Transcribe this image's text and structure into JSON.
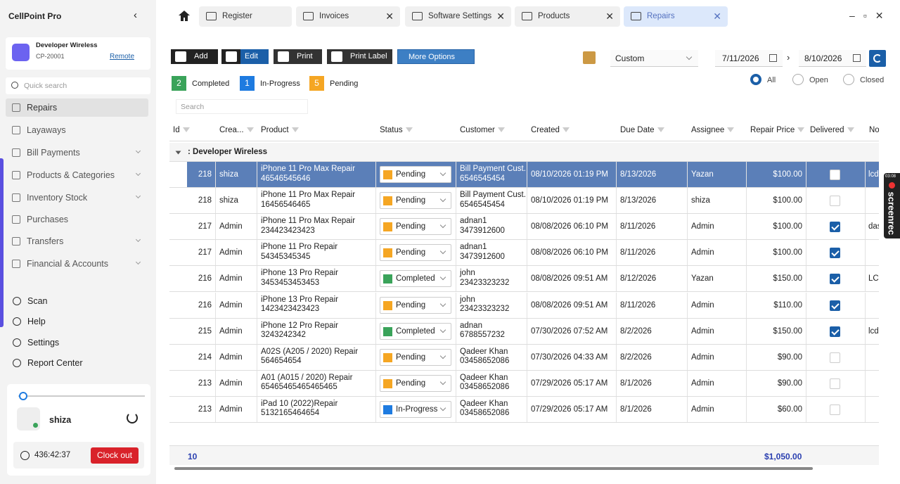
{
  "app": {
    "name": "CellPoint Pro"
  },
  "store": {
    "name": "Developer Wireless",
    "code": "CP-20001",
    "link": "Remote"
  },
  "sidebar": {
    "search_placeholder": "Quick search",
    "nav": [
      "Repairs",
      "Layaways",
      "Bill Payments",
      "Products & Categories",
      "Inventory Stock",
      "Purchases",
      "Transfers",
      "Financial & Accounts"
    ],
    "bottom": [
      "Scan",
      "Help",
      "Settings",
      "Report Center"
    ]
  },
  "user": {
    "name": "shiza",
    "timer": "436:42:37",
    "clock_out": "Clock out"
  },
  "tabs": [
    "Register",
    "Invoices",
    "Software Settings",
    "Products",
    "Repairs"
  ],
  "toolbar": {
    "buttons": [
      "Add",
      "Edit",
      "Print",
      "Print Label",
      "More Options"
    ],
    "range": "Custom",
    "from": "7/11/2026",
    "to": "8/10/2026"
  },
  "counts": [
    {
      "count": 2,
      "label": "Completed",
      "color": "#3aa35a"
    },
    {
      "count": 1,
      "label": "In-Progress",
      "color": "#1e7be0"
    },
    {
      "count": 5,
      "label": "Pending",
      "color": "#f5a623"
    }
  ],
  "filters": [
    "All",
    "Open",
    "Closed"
  ],
  "grid": {
    "search_placeholder": "Search",
    "columns": [
      "Id",
      "Crea...",
      "Product",
      "Status",
      "Customer",
      "Created",
      "Due Date",
      "Assignee",
      "Repair Price",
      "Delivered",
      "No"
    ],
    "group": ": Developer Wireless",
    "rows": [
      {
        "id": 218,
        "creator": "shiza",
        "product": "iPhone 11 Pro Max Repair",
        "serial": "46546545646",
        "status": "Pending",
        "customer": "Bill Payment Cust...",
        "phone": "6546545454",
        "created": "08/10/2026 01:19 PM",
        "due": "8/13/2026",
        "assignee": "Yazan",
        "price": "$100.00",
        "delivered": false,
        "note": "lcd"
      },
      {
        "id": 218,
        "creator": "shiza",
        "product": "iPhone 11 Pro Max Repair",
        "serial": "16456546465",
        "status": "Pending",
        "customer": "Bill Payment Cust...",
        "phone": "6546545454",
        "created": "08/10/2026 01:19 PM",
        "due": "8/13/2026",
        "assignee": "shiza",
        "price": "$100.00",
        "delivered": false,
        "note": null
      },
      {
        "id": 217,
        "creator": "Admin",
        "product": "iPhone 11 Pro Max Repair",
        "serial": "234423423423",
        "status": "Pending",
        "customer": "adnan1",
        "phone": "3473912600",
        "created": "08/08/2026 06:10 PM",
        "due": "8/11/2026",
        "assignee": "Admin",
        "price": "$100.00",
        "delivered": true,
        "note": "das"
      },
      {
        "id": 217,
        "creator": "Admin",
        "product": "iPhone 11 Pro Repair",
        "serial": "54345345345",
        "status": "Pending",
        "customer": "adnan1",
        "phone": "3473912600",
        "created": "08/08/2026 06:10 PM",
        "due": "8/11/2026",
        "assignee": "Admin",
        "price": "$100.00",
        "delivered": true,
        "note": null
      },
      {
        "id": 216,
        "creator": "Admin",
        "product": "iPhone 13 Pro Repair",
        "serial": "3453453453453",
        "status": "Completed",
        "customer": "john",
        "phone": "23423323232",
        "created": "08/08/2026 09:51 AM",
        "due": "8/12/2026",
        "assignee": "Yazan",
        "price": "$150.00",
        "delivered": true,
        "note": "LCD"
      },
      {
        "id": 216,
        "creator": "Admin",
        "product": "iPhone 13 Pro Repair",
        "serial": "1423423423423",
        "status": "Pending",
        "customer": "john",
        "phone": "23423323232",
        "created": "08/08/2026 09:51 AM",
        "due": "8/11/2026",
        "assignee": "Admin",
        "price": "$110.00",
        "delivered": true,
        "note": null
      },
      {
        "id": 215,
        "creator": "Admin",
        "product": "iPhone 12 Pro Repair",
        "serial": "3243242342",
        "status": "Completed",
        "customer": "adnan",
        "phone": "6788557232",
        "created": "07/30/2026 07:52 AM",
        "due": "8/2/2026",
        "assignee": "Admin",
        "price": "$150.00",
        "delivered": true,
        "note": "lcd"
      },
      {
        "id": 214,
        "creator": "Admin",
        "product": "A02S (A205 / 2020) Repair",
        "serial": "564654654",
        "status": "Pending",
        "customer": "Qadeer Khan",
        "phone": "03458652086",
        "created": "07/30/2026 04:33 AM",
        "due": "8/2/2026",
        "assignee": "Admin",
        "price": "$90.00",
        "delivered": false,
        "note": null
      },
      {
        "id": 213,
        "creator": "Admin",
        "product": "A01 (A015 / 2020) Repair",
        "serial": "65465465465465465",
        "status": "Pending",
        "customer": "Qadeer Khan",
        "phone": "03458652086",
        "created": "07/29/2026 05:17 AM",
        "due": "8/1/2026",
        "assignee": "Admin",
        "price": "$90.00",
        "delivered": false,
        "note": null
      },
      {
        "id": 213,
        "creator": "Admin",
        "product": "iPad 10 (2022)Repair",
        "serial": "5132165464654",
        "status": "In-Progress",
        "customer": "Qadeer Khan",
        "phone": "03458652086",
        "created": "07/29/2026 05:17 AM",
        "due": "8/1/2026",
        "assignee": "Admin",
        "price": "$60.00",
        "delivered": false,
        "note": null
      }
    ],
    "footer": {
      "count": 10,
      "total": "$1,050.00"
    }
  },
  "watermark": {
    "time": "03:08",
    "text": "screenrec"
  }
}
